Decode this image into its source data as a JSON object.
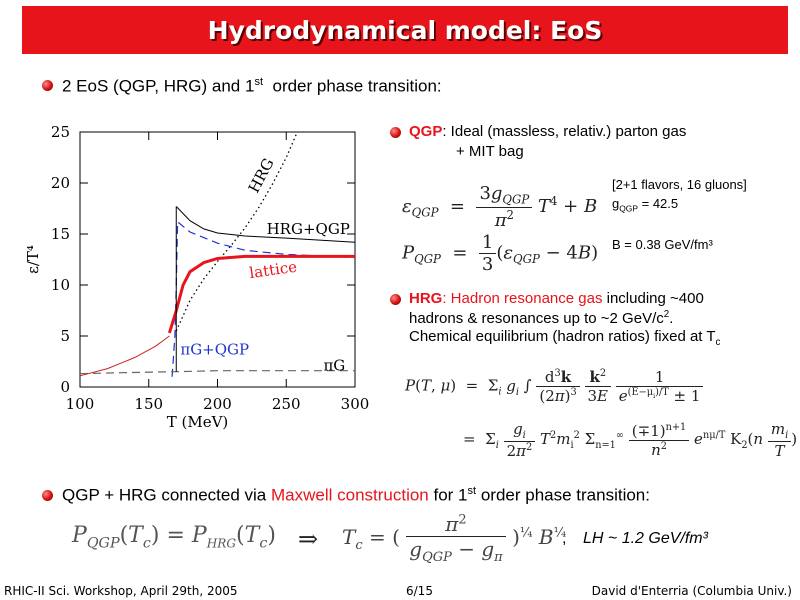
{
  "title": "Hydrodynamical model: EoS",
  "bullets": {
    "b1_pre": "2 EoS (QGP, HRG) and 1",
    "b1_sup": "st",
    "b1_post": "order phase transition:",
    "qgp_label": "QGP",
    "qgp_text": ": Ideal (massless, relativ.) parton gas",
    "qgp_text2": "+ MIT bag",
    "qgp_note1": "[2+1 flavors, 16 gluons]",
    "qgp_note2_pre": "g",
    "qgp_note2_sub": "QGP",
    "qgp_note2_post": " = 42.5",
    "qgp_note3": "B = 0.38 GeV/fm³",
    "hrg_label": "HRG",
    "hrg_red": ": Hadron resonance gas",
    "hrg_text1": " including ~400",
    "hrg_text2_pre": "hadrons & resonances up to ~2 GeV/c",
    "hrg_text2_sup": "2",
    "hrg_text2_post": ".",
    "hrg_text3_pre": "Chemical equilibrium (hadron ratios) fixed at T",
    "hrg_text3_sub": "c",
    "b3_pre": "QGP + HRG connected via ",
    "b3_red": "Maxwell construction",
    "b3_mid": " for 1",
    "b3_sup": "st",
    "b3_post": " order phase transition:",
    "lh": "LH ~ 1.2 GeV/fm³"
  },
  "footer": {
    "left": "RHIC-II Sci. Workshop, April 29th, 2005",
    "center": "6/15",
    "right": "David d'Enterria (Columbia Univ.)"
  },
  "chart_data": {
    "type": "line",
    "xlabel": "T (MeV)",
    "ylabel": "ε/T⁴",
    "xlim": [
      100,
      300
    ],
    "ylim": [
      0,
      25
    ],
    "x_ticks": [
      100,
      150,
      200,
      250,
      300
    ],
    "y_ticks": [
      0,
      5,
      10,
      15,
      20,
      25
    ],
    "series": [
      {
        "name": "HRG",
        "style": "dotted",
        "color": "#000000",
        "points": [
          [
            170,
            5.5
          ],
          [
            180,
            8.5
          ],
          [
            190,
            10.6
          ],
          [
            200,
            12.3
          ],
          [
            210,
            13.9
          ],
          [
            220,
            15.6
          ],
          [
            230,
            17.6
          ],
          [
            240,
            19.9
          ],
          [
            250,
            22.5
          ],
          [
            258,
            25
          ]
        ]
      },
      {
        "name": "HRG+QGP",
        "style": "solid",
        "color": "#000000",
        "points": [
          [
            170,
            17.7
          ],
          [
            180,
            16.3
          ],
          [
            190,
            15.5
          ],
          [
            200,
            15.1
          ],
          [
            220,
            14.8
          ],
          [
            250,
            14.6
          ],
          [
            300,
            14.2
          ]
        ]
      },
      {
        "name": "πG+QGP",
        "style": "dashed",
        "color": "#2233cc",
        "points": [
          [
            167,
            1
          ],
          [
            169,
            5
          ],
          [
            170,
            10
          ],
          [
            171,
            16.2
          ],
          [
            180,
            15.2
          ],
          [
            200,
            14.1
          ],
          [
            220,
            13.4
          ],
          [
            250,
            13
          ],
          [
            300,
            12.7
          ]
        ]
      },
      {
        "name": "lattice",
        "style": "solid-thick",
        "color": "#e8141c",
        "points": [
          [
            165,
            5.3
          ],
          [
            170,
            7.5
          ],
          [
            175,
            10
          ],
          [
            180,
            11.3
          ],
          [
            190,
            12.2
          ],
          [
            200,
            12.6
          ],
          [
            220,
            12.8
          ],
          [
            300,
            12.8
          ]
        ]
      },
      {
        "name": "πG",
        "style": "dashed",
        "color": "#666666",
        "points": [
          [
            100,
            1.3
          ],
          [
            130,
            1.4
          ],
          [
            170,
            1.5
          ],
          [
            200,
            1.6
          ],
          [
            300,
            1.6
          ]
        ]
      },
      {
        "name": "",
        "style": "solid-thin",
        "color": "#cc2222",
        "points": [
          [
            100,
            1.1
          ],
          [
            120,
            1.8
          ],
          [
            140,
            2.9
          ],
          [
            155,
            4
          ],
          [
            165,
            5
          ]
        ]
      }
    ],
    "annotations": [
      "HRG",
      "HRG+QGP",
      "lattice",
      "πG+QGP",
      "πG"
    ]
  },
  "colors": {
    "accent": "#e8141c",
    "blue": "#2233cc"
  },
  "icons": {
    "bullet": "red-sphere-bullet-icon"
  }
}
